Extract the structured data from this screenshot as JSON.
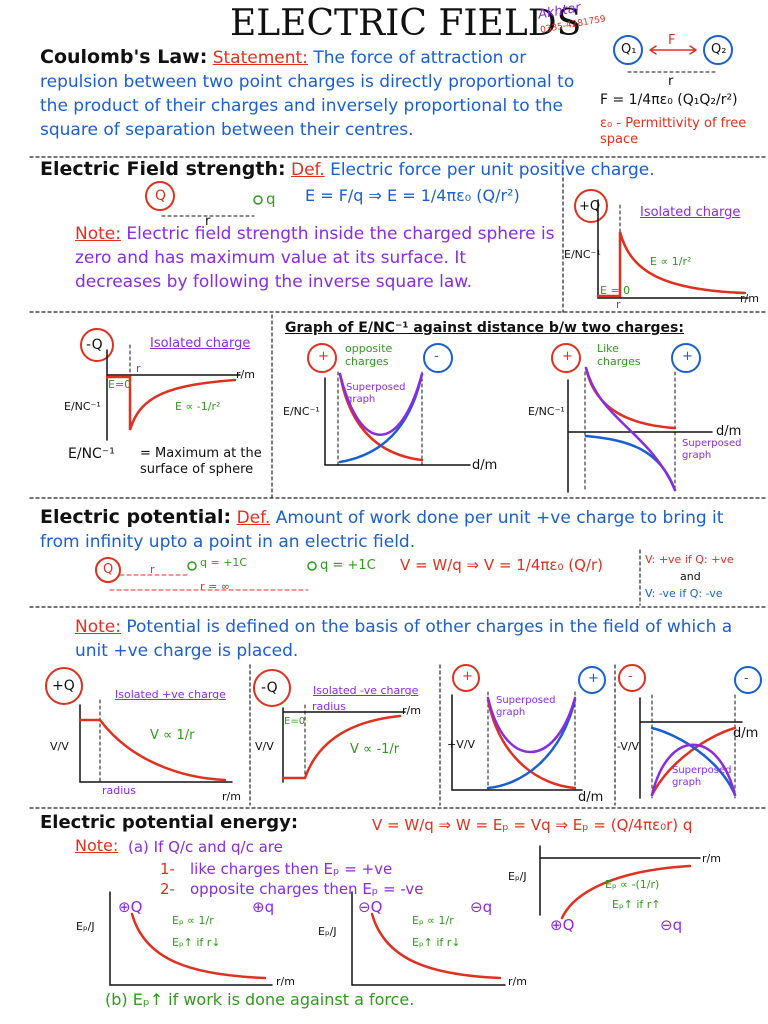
{
  "header": {
    "title": "ELECTRIC FIELDS",
    "signature": "Akhtar",
    "phone": "0335-4281759"
  },
  "coulomb": {
    "heading": "Coulomb's Law:",
    "label": "Statement:",
    "text": "The force of attraction or repulsion between two point charges is directly proportional to the product of their charges and inversely proportional to the square of separation between their centres.",
    "q1": "Q₁",
    "q2": "Q₂",
    "force": "F",
    "distance": "r",
    "formula": "F = 1/4πε₀ (Q₁Q₂/r²)",
    "permittivity": "ε₀ - Permittivity of free space"
  },
  "field_strength": {
    "heading": "Electric Field strength:",
    "label": "Def.",
    "text": "Electric force per unit positive charge.",
    "charge": "Q",
    "test_charge": "q",
    "distance": "r",
    "formula": "E = F/q ⇒ E = 1/4πε₀ (Q/r²)",
    "note_label": "Note:",
    "note": "Electric field strength inside the charged sphere is zero and has maximum value at its surface. It decreases by following the inverse square law.",
    "graph": {
      "charge": "+Q",
      "title": "Isolated charge",
      "y_label": "E/NC⁻¹",
      "inside": "E = 0",
      "relation": "E ∝ 1/r²",
      "radius": "r",
      "x_label": "r/m"
    }
  },
  "negative_field": {
    "charge": "-Q",
    "title": "Isolated charge",
    "inside": "E=0",
    "radius": "r",
    "x_label": "r/m",
    "y_label": "E/NC⁻¹",
    "relation": "E ∝ -1/r²",
    "max_label": "E/NC⁻¹",
    "max_text": "= Maximum at the surface of sphere"
  },
  "two_charges": {
    "title": "Graph of E/NC⁻¹ against distance b/w two charges:",
    "opposite": {
      "left": "+",
      "right": "-",
      "caption": "opposite charges",
      "superposed": "Superposed graph",
      "y_label": "E/NC⁻¹",
      "x_label": "d/m"
    },
    "like": {
      "left": "+",
      "right": "+",
      "caption": "Like charges",
      "y_label": "E/NC⁻¹",
      "x_label": "d/m",
      "superposed": "Superposed graph"
    }
  },
  "potential": {
    "heading": "Electric potential:",
    "label": "Def.",
    "text": "Amount of work done per unit +ve charge to bring it from infinity upto a point in an electric field.",
    "charge": "Q",
    "distance": "r",
    "test_charge": "q = +1C",
    "infinity": "r = ∞",
    "test_charge_far": "q = +1C",
    "formula": "V = W/q ⇒ V = 1/4πε₀ (Q/r)",
    "sign_positive": "V: +ve if Q: +ve",
    "and": "and",
    "sign_negative": "V: -ve if Q: -ve",
    "note_label": "Note:",
    "note": "Potential is defined on the basis of other charges in the field of which a unit +ve charge is placed."
  },
  "potential_graphs": [
    {
      "charge": "+Q",
      "title": "Isolated +ve charge",
      "y_label": "V/V",
      "relation": "V ∝ 1/r",
      "radius": "radius",
      "x_label": "r/m"
    },
    {
      "charge": "-Q",
      "title": "Isolated -ve charge",
      "inside": "E=0",
      "radius": "radius",
      "x_label": "r/m",
      "y_label": "V/V",
      "relation": "V ∝ -1/r"
    },
    {
      "left": "+",
      "right": "+",
      "superposed": "Superposed graph",
      "y_label": "+V/V",
      "x_label": "d/m"
    },
    {
      "left": "-",
      "right": "-",
      "y_label": "-V/V",
      "x_label": "d/m",
      "superposed": "Superposed graph"
    }
  ],
  "energy": {
    "heading": "Electric potential energy:",
    "formula": "V = W/q ⇒ W = Eₚ = Vq ⇒ Eₚ = (Q/4πε₀r) q",
    "note_label": "Note:",
    "condition": "(a) If Q/c and q/c are",
    "case_like_num": "1-",
    "case_like": "like charges then Eₚ = +ve",
    "case_opposite_num": "2-",
    "case_opposite": "opposite charges then Eₚ = -ve",
    "graphs": [
      {
        "charge": "⊕Q",
        "test_charge": "⊕q",
        "y_label": "Eₚ/J",
        "relation": "Eₚ ∝ 1/r",
        "trend": "Eₚ↑ if r↓",
        "x_label": "r/m"
      },
      {
        "charge": "⊖Q",
        "test_charge": "⊖q",
        "y_label": "Eₚ/J",
        "relation": "Eₚ ∝ 1/r",
        "trend": "Eₚ↑ if r↓",
        "x_label": "r/m"
      },
      {
        "charge": "⊕Q",
        "test_charge": "⊖q",
        "y_label": "Eₚ/J",
        "relation": "Eₚ ∝ -(1/r)",
        "trend": "Eₚ↑ if r↑",
        "x_label": "r/m"
      }
    ],
    "conclusion": "(b) Eₚ↑ if work is done against a force."
  }
}
